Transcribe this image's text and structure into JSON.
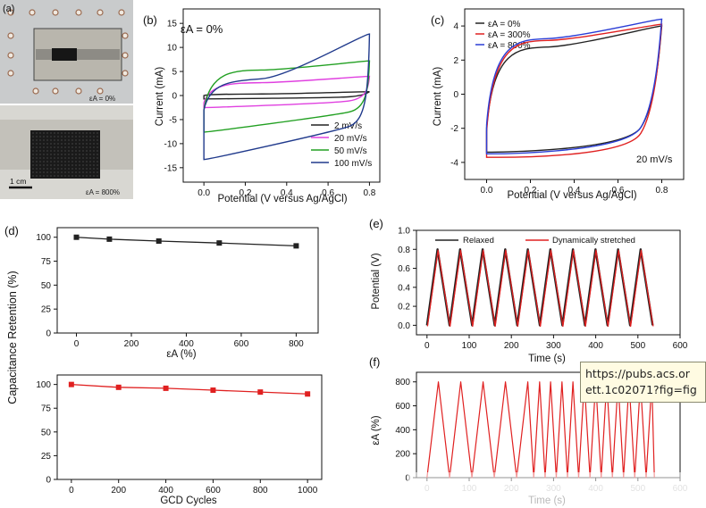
{
  "photo": {
    "label": "(a)",
    "caption_top": "εA = 0%",
    "scale": "1 cm",
    "caption_bottom": "εA = 800%"
  },
  "tooltip": {
    "line1": "https://pubs.acs.or",
    "line2": "ett.1c02071?fig=fig"
  },
  "colors": {
    "black": "#222222",
    "magenta": "#e040e0",
    "green": "#22a022",
    "navy": "#203a8c",
    "red": "#e02020",
    "blue": "#2b3ed6",
    "dark_red": "#7a1010"
  },
  "chart_data": [
    {
      "id": "b",
      "panel_label": "(b)",
      "type": "line",
      "annotation": "εA = 0%",
      "xlabel": "Potential (V versus Ag/AgCl)",
      "ylabel": "Current (mA)",
      "xlim": [
        -0.1,
        0.85
      ],
      "ylim": [
        -18,
        18
      ],
      "xticks": [
        "0.0",
        "0.2",
        "0.4",
        "0.6",
        "0.8"
      ],
      "yticks": [
        "-15",
        "-10",
        "-5",
        "0",
        "5",
        "10",
        "15"
      ],
      "legend_position": "bottom-right",
      "series": [
        {
          "name": "2 mV/s",
          "color": "black",
          "loop": {
            "upper_start": 0.0,
            "upper_plateau": 0.3,
            "upper_end": 0.8,
            "lower_start": -0.7,
            "lower_plateau": -0.3,
            "lower_end": 0.7
          }
        },
        {
          "name": "20 mV/s",
          "color": "magenta",
          "loop": {
            "upper_start": -1.5,
            "upper_plateau": 2.6,
            "upper_end": 4.0,
            "lower_start": -2.5,
            "lower_plateau": -1.3,
            "lower_end": 1.2
          }
        },
        {
          "name": "50 mV/s",
          "color": "green",
          "loop": {
            "upper_start": -3.0,
            "upper_plateau": 5.2,
            "upper_end": 7.2,
            "lower_start": -7.6,
            "lower_plateau": -4.0,
            "lower_end": 0.6
          }
        },
        {
          "name": "100 mV/s",
          "color": "navy",
          "loop": {
            "upper_start": -3.0,
            "upper_plateau": 3.0,
            "upper_end": 12.8,
            "lower_start": -13.3,
            "lower_plateau": -7.5,
            "lower_end": 0.3
          }
        }
      ]
    },
    {
      "id": "c",
      "panel_label": "(c)",
      "type": "line",
      "xlabel": "Potential (V versus Ag/AgCl)",
      "ylabel": "Current (mA)",
      "xlim": [
        -0.1,
        0.9
      ],
      "ylim": [
        -5,
        5
      ],
      "xticks": [
        "0.0",
        "0.2",
        "0.4",
        "0.6",
        "0.8"
      ],
      "yticks": [
        "-4",
        "-2",
        "0",
        "2",
        "4"
      ],
      "annotation": "20 mV/s",
      "legend_position": "top-left",
      "series": [
        {
          "name": "εA = 0%",
          "color": "black",
          "loop": {
            "upper_start": -2.0,
            "upper_plateau": 2.7,
            "upper_end": 4.0,
            "lower_start": -3.4,
            "lower_plateau": -2.3,
            "lower_end": 3.6
          }
        },
        {
          "name": "εA = 300%",
          "color": "red",
          "loop": {
            "upper_start": -2.2,
            "upper_plateau": 3.1,
            "upper_end": 4.1,
            "lower_start": -3.7,
            "lower_plateau": -2.7,
            "lower_end": 3.8
          }
        },
        {
          "name": "εA = 800%",
          "color": "blue",
          "loop": {
            "upper_start": -1.8,
            "upper_plateau": 3.2,
            "upper_end": 4.4,
            "lower_start": -3.5,
            "lower_plateau": -2.3,
            "lower_end": 4.0
          }
        }
      ]
    },
    {
      "id": "d_top",
      "panel_label": "(d)",
      "type": "line",
      "xlabel": "εA (%)",
      "ylabel": "Capacitance Retention (%)",
      "xlim": [
        -70,
        880
      ],
      "ylim": [
        0,
        110
      ],
      "xticks": [
        0,
        200,
        400,
        600,
        800
      ],
      "yticks": [
        0,
        25,
        50,
        75,
        100
      ],
      "series": [
        {
          "color": "black",
          "marker": "square",
          "x": [
            0,
            120,
            300,
            520,
            800
          ],
          "y": [
            100,
            98,
            96,
            94,
            91
          ]
        }
      ]
    },
    {
      "id": "d_bottom",
      "type": "line",
      "xlabel": "GCD Cycles",
      "xlim": [
        -60,
        1060
      ],
      "ylim": [
        0,
        110
      ],
      "xticks": [
        0,
        200,
        400,
        600,
        800,
        1000
      ],
      "yticks": [
        0,
        25,
        50,
        75,
        100
      ],
      "series": [
        {
          "color": "red",
          "marker": "square",
          "x": [
            0,
            200,
            400,
            600,
            800,
            1000
          ],
          "y": [
            100,
            97,
            96,
            94,
            92,
            90
          ]
        }
      ]
    },
    {
      "id": "e",
      "panel_label": "(e)",
      "type": "line",
      "xlabel": "Time (s)",
      "ylabel": "Potential (V)",
      "xlim": [
        -25,
        600
      ],
      "ylim": [
        -0.1,
        1.0
      ],
      "xticks": [
        0,
        100,
        200,
        300,
        400,
        500,
        600
      ],
      "yticks": [
        "0.0",
        "0.2",
        "0.4",
        "0.6",
        "0.8",
        "1.0"
      ],
      "legend_position": "top",
      "cycle": {
        "count": 10,
        "period_s": 53.5,
        "charge_s": 25,
        "vmin": 0.0,
        "vmax": 0.8
      },
      "series": [
        {
          "name": "Relaxed",
          "color": "black"
        },
        {
          "name": "Dynamically stretched",
          "color": "red"
        }
      ]
    },
    {
      "id": "f",
      "panel_label": "(f)",
      "type": "line",
      "xlabel": "Time (s)",
      "ylabel": "εA (%)",
      "xlim": [
        -25,
        600
      ],
      "ylim": [
        0,
        880
      ],
      "xticks": [
        0,
        100,
        200,
        300,
        400,
        500,
        600
      ],
      "yticks": [
        0,
        200,
        400,
        600,
        800
      ],
      "series": [
        {
          "color": "red",
          "peaks_x": [
            27,
            80,
            133,
            186,
            239,
            267,
            293,
            320,
            346,
            373,
            400,
            426,
            453,
            479,
            506,
            533
          ],
          "strain_max": 800
        }
      ]
    }
  ]
}
